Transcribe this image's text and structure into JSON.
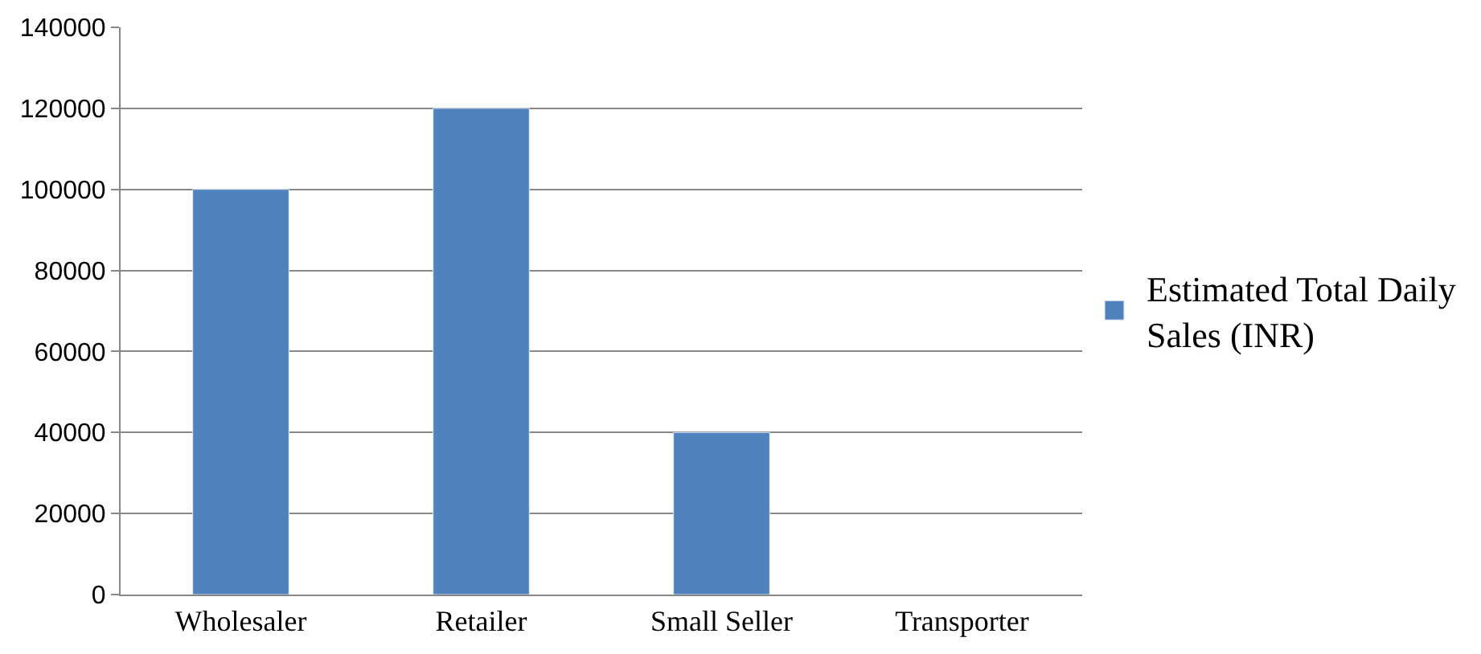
{
  "chart_data": {
    "type": "bar",
    "categories": [
      "Wholesaler",
      "Retailer",
      "Small Seller",
      "Transporter"
    ],
    "series": [
      {
        "name": "Estimated Total Daily Sales (INR)",
        "color": "#4f81bd",
        "values": [
          100000,
          120000,
          40000,
          null
        ]
      }
    ],
    "ylim": [
      0,
      140000
    ],
    "yticks": [
      0,
      20000,
      40000,
      60000,
      80000,
      100000,
      120000,
      140000
    ],
    "grid": "y",
    "legend": "right"
  }
}
